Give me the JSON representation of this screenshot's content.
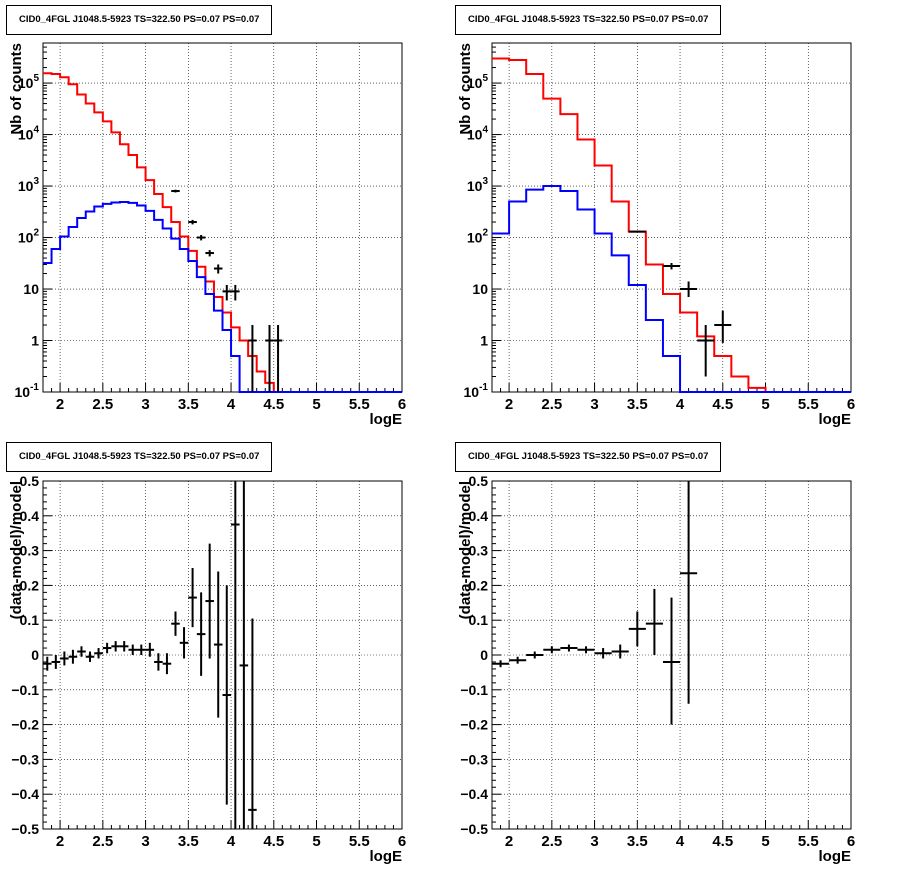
{
  "chart_data": [
    {
      "type": "line",
      "title": "CID0_4FGL J1048.5-5923 TS=322.50 PS=0.07 PS=0.07",
      "xlabel": "logE",
      "ylabel": "Nb of counts",
      "xlim": [
        1.8,
        6.0
      ],
      "ylim": [
        0.1,
        600000
      ],
      "yscale": "log",
      "grid": true,
      "x_ticks": [
        "2",
        "2.5",
        "3",
        "3.5",
        "4",
        "4.5",
        "5",
        "5.5",
        "6"
      ],
      "y_ticks": [
        "10^-1",
        "1",
        "10",
        "10^2",
        "10^3",
        "10^4",
        "10^5"
      ],
      "bin_edges": [
        1.8,
        1.9,
        2.0,
        2.1,
        2.2,
        2.3,
        2.4,
        2.5,
        2.6,
        2.7,
        2.8,
        2.9,
        3.0,
        3.1,
        3.2,
        3.3,
        3.4,
        3.5,
        3.6,
        3.7,
        3.8,
        3.9,
        4.0,
        4.1,
        4.2,
        4.3,
        4.4,
        4.5,
        4.6,
        4.7,
        4.8,
        4.9,
        5.0,
        5.1,
        5.2,
        5.3,
        5.4,
        5.5,
        5.6,
        5.7,
        5.8,
        5.9,
        6.0
      ],
      "series": [
        {
          "color": "#ff0000",
          "values": [
            155000,
            150000,
            130000,
            95000,
            60000,
            40000,
            27000,
            18000,
            11000,
            6500,
            4000,
            2300,
            1300,
            700,
            390,
            200,
            105,
            55,
            27,
            14,
            7,
            3.5,
            1.8,
            1.0,
            0.5,
            0.25,
            0.15,
            0.1,
            0.1,
            0.1,
            0.1,
            0.1,
            0.1,
            0.1,
            0.1,
            0.1,
            0.1,
            0.1,
            0.1,
            0.1,
            0.1,
            0.1
          ]
        },
        {
          "color": "#0000ff",
          "values": [
            32,
            60,
            105,
            160,
            240,
            320,
            400,
            450,
            480,
            490,
            470,
            420,
            330,
            220,
            150,
            95,
            60,
            35,
            17,
            8,
            3.8,
            1.6,
            0.5,
            0.1,
            0.1,
            0.1,
            0.1,
            0.1,
            0.1,
            0.1,
            0.1,
            0.1,
            0.1,
            0.1,
            0.1,
            0.1,
            0.1,
            0.1,
            0.1,
            0.1,
            0.1,
            0.1
          ]
        }
      ],
      "points": [
        {
          "x": 3.35,
          "y": 800,
          "dx": 0.05,
          "ylo": 750,
          "yhi": 850
        },
        {
          "x": 3.55,
          "y": 200,
          "dx": 0.05,
          "ylo": 180,
          "yhi": 220
        },
        {
          "x": 3.65,
          "y": 100,
          "dx": 0.05,
          "ylo": 88,
          "yhi": 112
        },
        {
          "x": 3.75,
          "y": 50,
          "dx": 0.05,
          "ylo": 43,
          "yhi": 57
        },
        {
          "x": 3.85,
          "y": 25,
          "dx": 0.05,
          "ylo": 20,
          "yhi": 30
        },
        {
          "x": 3.95,
          "y": 9,
          "dx": 0.05,
          "ylo": 6,
          "yhi": 12
        },
        {
          "x": 4.05,
          "y": 9,
          "dx": 0.05,
          "ylo": 6,
          "yhi": 12
        },
        {
          "x": 4.25,
          "y": 1,
          "dx": 0.05,
          "ylo": 0.1,
          "yhi": 2
        },
        {
          "x": 4.45,
          "y": 1,
          "dx": 0.05,
          "ylo": 0.1,
          "yhi": 2
        },
        {
          "x": 4.55,
          "y": 1,
          "dx": 0.05,
          "ylo": 0.1,
          "yhi": 2
        }
      ]
    },
    {
      "type": "line",
      "title": "CID0_4FGL J1048.5-5923 TS=322.50 PS=0.07 PS=0.07",
      "xlabel": "logE",
      "ylabel": "Nb of counts",
      "xlim": [
        1.8,
        6.0
      ],
      "ylim": [
        0.1,
        600000
      ],
      "yscale": "log",
      "grid": true,
      "x_ticks": [
        "2",
        "2.5",
        "3",
        "3.5",
        "4",
        "4.5",
        "5",
        "5.5",
        "6"
      ],
      "y_ticks": [
        "10^-1",
        "1",
        "10",
        "10^2",
        "10^3",
        "10^4",
        "10^5"
      ],
      "bin_edges": [
        1.8,
        2.0,
        2.2,
        2.4,
        2.6,
        2.8,
        3.0,
        3.2,
        3.4,
        3.6,
        3.8,
        4.0,
        4.2,
        4.4,
        4.6,
        4.8,
        5.0,
        5.2,
        5.4,
        5.6,
        5.8,
        6.0
      ],
      "series": [
        {
          "color": "#ff0000",
          "values": [
            300000,
            280000,
            150000,
            50000,
            25000,
            8000,
            2500,
            500,
            130,
            30,
            8,
            3.5,
            1.2,
            0.5,
            0.2,
            0.12,
            0.1,
            0.1,
            0.1,
            0.1,
            0.1
          ]
        },
        {
          "color": "#0000ff",
          "values": [
            120,
            500,
            850,
            1000,
            800,
            350,
            120,
            45,
            12,
            2.5,
            0.5,
            0.1,
            0.1,
            0.1,
            0.1,
            0.1,
            0.1,
            0.1,
            0.1,
            0.1,
            0.1
          ]
        }
      ],
      "points": [
        {
          "x": 3.5,
          "y": 130,
          "dx": 0.1,
          "ylo": 125,
          "yhi": 135
        },
        {
          "x": 3.9,
          "y": 28,
          "dx": 0.1,
          "ylo": 24,
          "yhi": 32
        },
        {
          "x": 4.1,
          "y": 10,
          "dx": 0.1,
          "ylo": 7,
          "yhi": 14
        },
        {
          "x": 4.3,
          "y": 1,
          "dx": 0.1,
          "ylo": 0.2,
          "yhi": 2
        },
        {
          "x": 4.5,
          "y": 2,
          "dx": 0.1,
          "ylo": 0.9,
          "yhi": 3.8
        }
      ]
    },
    {
      "type": "scatter",
      "title": "CID0_4FGL J1048.5-5923 TS=322.50 PS=0.07 PS=0.07",
      "xlabel": "logE",
      "ylabel": "(data-model)/model",
      "xlim": [
        1.8,
        6.0
      ],
      "ylim": [
        -0.5,
        0.5
      ],
      "grid": true,
      "x_ticks": [
        "2",
        "2.5",
        "3",
        "3.5",
        "4",
        "4.5",
        "5",
        "5.5",
        "6"
      ],
      "y_ticks": [
        "-0.5",
        "-0.4",
        "-0.3",
        "-0.2",
        "-0.1",
        "0",
        "0.1",
        "0.2",
        "0.3",
        "0.4",
        "0.5"
      ],
      "points": [
        {
          "x": 1.85,
          "y": -0.025,
          "dx": 0.05,
          "ylo": -0.045,
          "yhi": -0.005
        },
        {
          "x": 1.95,
          "y": -0.02,
          "dx": 0.05,
          "ylo": -0.04,
          "yhi": 0.0
        },
        {
          "x": 2.05,
          "y": -0.01,
          "dx": 0.05,
          "ylo": -0.03,
          "yhi": 0.01
        },
        {
          "x": 2.15,
          "y": -0.005,
          "dx": 0.05,
          "ylo": -0.025,
          "yhi": 0.015
        },
        {
          "x": 2.25,
          "y": 0.01,
          "dx": 0.05,
          "ylo": -0.005,
          "yhi": 0.025
        },
        {
          "x": 2.35,
          "y": -0.005,
          "dx": 0.05,
          "ylo": -0.02,
          "yhi": 0.01
        },
        {
          "x": 2.45,
          "y": 0.005,
          "dx": 0.05,
          "ylo": -0.01,
          "yhi": 0.02
        },
        {
          "x": 2.55,
          "y": 0.02,
          "dx": 0.05,
          "ylo": 0.005,
          "yhi": 0.035
        },
        {
          "x": 2.65,
          "y": 0.025,
          "dx": 0.05,
          "ylo": 0.01,
          "yhi": 0.04
        },
        {
          "x": 2.75,
          "y": 0.025,
          "dx": 0.05,
          "ylo": 0.01,
          "yhi": 0.04
        },
        {
          "x": 2.85,
          "y": 0.015,
          "dx": 0.05,
          "ylo": 0.0,
          "yhi": 0.03
        },
        {
          "x": 2.95,
          "y": 0.015,
          "dx": 0.05,
          "ylo": 0.0,
          "yhi": 0.03
        },
        {
          "x": 3.05,
          "y": 0.015,
          "dx": 0.05,
          "ylo": -0.005,
          "yhi": 0.035
        },
        {
          "x": 3.15,
          "y": -0.02,
          "dx": 0.05,
          "ylo": -0.045,
          "yhi": 0.005
        },
        {
          "x": 3.25,
          "y": -0.025,
          "dx": 0.05,
          "ylo": -0.055,
          "yhi": 0.005
        },
        {
          "x": 3.35,
          "y": 0.09,
          "dx": 0.05,
          "ylo": 0.055,
          "yhi": 0.125
        },
        {
          "x": 3.45,
          "y": 0.035,
          "dx": 0.05,
          "ylo": -0.01,
          "yhi": 0.08
        },
        {
          "x": 3.55,
          "y": 0.165,
          "dx": 0.05,
          "ylo": 0.08,
          "yhi": 0.25
        },
        {
          "x": 3.65,
          "y": 0.06,
          "dx": 0.05,
          "ylo": -0.06,
          "yhi": 0.18
        },
        {
          "x": 3.75,
          "y": 0.155,
          "dx": 0.05,
          "ylo": -0.01,
          "yhi": 0.32
        },
        {
          "x": 3.85,
          "y": 0.03,
          "dx": 0.05,
          "ylo": -0.18,
          "yhi": 0.24
        },
        {
          "x": 3.95,
          "y": -0.115,
          "dx": 0.05,
          "ylo": -0.43,
          "yhi": 0.2
        },
        {
          "x": 4.05,
          "y": 0.375,
          "dx": 0.05,
          "ylo": -0.5,
          "yhi": 0.5
        },
        {
          "x": 4.15,
          "y": -0.03,
          "dx": 0.05,
          "ylo": -0.5,
          "yhi": 0.5
        },
        {
          "x": 4.25,
          "y": -0.445,
          "dx": 0.05,
          "ylo": -0.5,
          "yhi": 0.105
        }
      ]
    },
    {
      "type": "scatter",
      "title": "CID0_4FGL J1048.5-5923 TS=322.50 PS=0.07 PS=0.07",
      "xlabel": "logE",
      "ylabel": "(data-model)/model",
      "xlim": [
        1.8,
        6.0
      ],
      "ylim": [
        -0.5,
        0.5
      ],
      "grid": true,
      "x_ticks": [
        "2",
        "2.5",
        "3",
        "3.5",
        "4",
        "4.5",
        "5",
        "5.5",
        "6"
      ],
      "y_ticks": [
        "-0.5",
        "-0.4",
        "-0.3",
        "-0.2",
        "-0.1",
        "0",
        "0.1",
        "0.2",
        "0.3",
        "0.4",
        "0.5"
      ],
      "points": [
        {
          "x": 1.9,
          "y": -0.025,
          "dx": 0.1,
          "ylo": -0.035,
          "yhi": -0.015
        },
        {
          "x": 2.1,
          "y": -0.015,
          "dx": 0.1,
          "ylo": -0.025,
          "yhi": -0.005
        },
        {
          "x": 2.3,
          "y": 0.0,
          "dx": 0.1,
          "ylo": -0.01,
          "yhi": 0.01
        },
        {
          "x": 2.5,
          "y": 0.015,
          "dx": 0.1,
          "ylo": 0.005,
          "yhi": 0.025
        },
        {
          "x": 2.7,
          "y": 0.02,
          "dx": 0.1,
          "ylo": 0.01,
          "yhi": 0.03
        },
        {
          "x": 2.9,
          "y": 0.015,
          "dx": 0.1,
          "ylo": 0.005,
          "yhi": 0.025
        },
        {
          "x": 3.1,
          "y": 0.005,
          "dx": 0.1,
          "ylo": -0.01,
          "yhi": 0.02
        },
        {
          "x": 3.3,
          "y": 0.01,
          "dx": 0.1,
          "ylo": -0.01,
          "yhi": 0.03
        },
        {
          "x": 3.5,
          "y": 0.075,
          "dx": 0.1,
          "ylo": 0.025,
          "yhi": 0.125
        },
        {
          "x": 3.7,
          "y": 0.09,
          "dx": 0.1,
          "ylo": 0.0,
          "yhi": 0.19
        },
        {
          "x": 3.9,
          "y": -0.02,
          "dx": 0.1,
          "ylo": -0.2,
          "yhi": 0.165
        },
        {
          "x": 4.1,
          "y": 0.235,
          "dx": 0.1,
          "ylo": -0.14,
          "yhi": 0.5
        }
      ]
    }
  ]
}
